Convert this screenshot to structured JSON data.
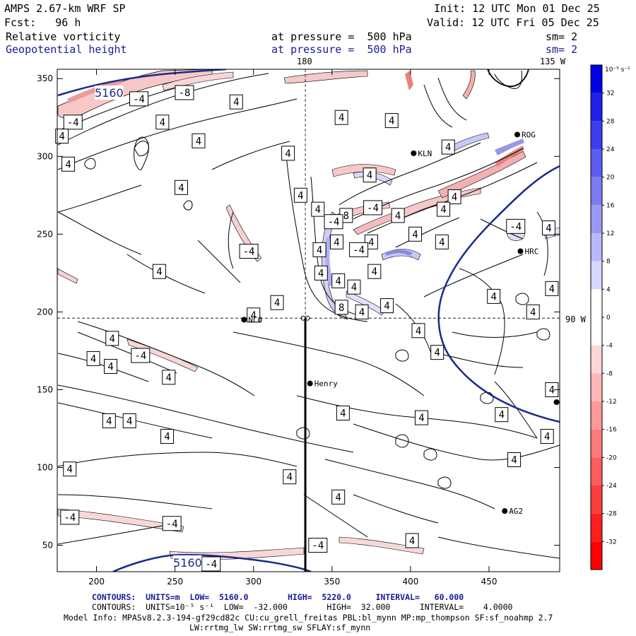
{
  "header": {
    "title": "AMPS 2.67-km WRF SP",
    "init": "Init: 12 UTC Mon 01 Dec 25",
    "fcst": "Fcst:   96 h",
    "valid": "Valid: 12 UTC Fri 05 Dec 25",
    "field1": {
      "name": "Relative vorticity",
      "at": "at pressure =  500 hPa",
      "sm": "sm= 2"
    },
    "field2": {
      "name": "Geopotential height",
      "at": "at pressure =  500 hPa",
      "sm": "sm= 2"
    }
  },
  "map_labels": {
    "lon180": "180",
    "lon135": "135 W",
    "lon90": "90 W"
  },
  "stations": [
    {
      "name": "ROG",
      "x": 468,
      "y": 314
    },
    {
      "name": "KLN",
      "x": 402,
      "y": 302
    },
    {
      "name": "HRC",
      "x": 470,
      "y": 239
    },
    {
      "name": "NCO",
      "x": 294,
      "y": 195
    },
    {
      "name": "Henry",
      "x": 336,
      "y": 154
    },
    {
      "name": "AG2",
      "x": 460,
      "y": 72
    },
    {
      "name": "",
      "x": 493,
      "y": 142
    }
  ],
  "contour_labels": [
    {
      "v": "-8",
      "x": 256,
      "y": 341
    },
    {
      "v": "-4",
      "x": 227,
      "y": 337
    },
    {
      "v": "4",
      "x": 289,
      "y": 335
    },
    {
      "v": "-4",
      "x": 185,
      "y": 322
    },
    {
      "v": "4",
      "x": 178,
      "y": 313
    },
    {
      "v": "4",
      "x": 242,
      "y": 322
    },
    {
      "v": "4",
      "x": 265,
      "y": 310
    },
    {
      "v": "4",
      "x": 356,
      "y": 325
    },
    {
      "v": "4",
      "x": 322,
      "y": 302
    },
    {
      "v": "4",
      "x": 388,
      "y": 323
    },
    {
      "v": "4",
      "x": 182,
      "y": 295
    },
    {
      "v": "4",
      "x": 374,
      "y": 288
    },
    {
      "v": "4",
      "x": 254,
      "y": 280
    },
    {
      "v": "4",
      "x": 428,
      "y": 274
    },
    {
      "v": "4",
      "x": 424,
      "y": 306
    },
    {
      "v": "4",
      "x": 330,
      "y": 275
    },
    {
      "v": "4",
      "x": 341,
      "y": 266
    },
    {
      "v": "-4",
      "x": 376,
      "y": 267
    },
    {
      "v": "8",
      "x": 359,
      "y": 262
    },
    {
      "v": "-4",
      "x": 351,
      "y": 258
    },
    {
      "v": "4",
      "x": 392,
      "y": 262
    },
    {
      "v": "4",
      "x": 421,
      "y": 266
    },
    {
      "v": "-4",
      "x": 467,
      "y": 255
    },
    {
      "v": "4",
      "x": 488,
      "y": 254
    },
    {
      "v": "4",
      "x": 375,
      "y": 245
    },
    {
      "v": "4",
      "x": 403,
      "y": 250
    },
    {
      "v": "4",
      "x": 420,
      "y": 245
    },
    {
      "v": "4",
      "x": 353,
      "y": 245
    },
    {
      "v": "-4",
      "x": 367,
      "y": 240
    },
    {
      "v": "4",
      "x": 342,
      "y": 240
    },
    {
      "v": "-4",
      "x": 297,
      "y": 239
    },
    {
      "v": "4",
      "x": 364,
      "y": 216
    },
    {
      "v": "4",
      "x": 343,
      "y": 225
    },
    {
      "v": "4",
      "x": 377,
      "y": 226
    },
    {
      "v": "4",
      "x": 354,
      "y": 220
    },
    {
      "v": "4",
      "x": 240,
      "y": 226
    },
    {
      "v": "4",
      "x": 490,
      "y": 215
    },
    {
      "v": "4",
      "x": 453,
      "y": 210
    },
    {
      "v": "4",
      "x": 315,
      "y": 206
    },
    {
      "v": "4",
      "x": 369,
      "y": 200
    },
    {
      "v": "8",
      "x": 356,
      "y": 203
    },
    {
      "v": "4",
      "x": 385,
      "y": 204
    },
    {
      "v": "4",
      "x": 478,
      "y": 200
    },
    {
      "v": "4",
      "x": 300,
      "y": 198
    },
    {
      "v": "4",
      "x": 405,
      "y": 188
    },
    {
      "v": "4",
      "x": 210,
      "y": 183
    },
    {
      "v": "-4",
      "x": 228,
      "y": 172
    },
    {
      "v": "4",
      "x": 198,
      "y": 170
    },
    {
      "v": "4",
      "x": 209,
      "y": 165
    },
    {
      "v": "4",
      "x": 417,
      "y": 174
    },
    {
      "v": "4",
      "x": 246,
      "y": 158
    },
    {
      "v": "4",
      "x": 357,
      "y": 135
    },
    {
      "v": "4",
      "x": 407,
      "y": 132
    },
    {
      "v": "4",
      "x": 458,
      "y": 134
    },
    {
      "v": "4",
      "x": 490,
      "y": 150
    },
    {
      "v": "4",
      "x": 208,
      "y": 130
    },
    {
      "v": "4",
      "x": 221,
      "y": 130
    },
    {
      "v": "4",
      "x": 245,
      "y": 120
    },
    {
      "v": "4",
      "x": 487,
      "y": 120
    },
    {
      "v": "4",
      "x": 466,
      "y": 105
    },
    {
      "v": "4",
      "x": 183,
      "y": 99
    },
    {
      "v": "4",
      "x": 323,
      "y": 94
    },
    {
      "v": "4",
      "x": 354,
      "y": 81
    },
    {
      "v": "-4",
      "x": 183,
      "y": 68
    },
    {
      "v": "-4",
      "x": 248,
      "y": 64
    },
    {
      "v": "-4",
      "x": 341,
      "y": 50
    },
    {
      "v": "4",
      "x": 401,
      "y": 53
    },
    {
      "v": "-4",
      "x": 273,
      "y": 38
    }
  ],
  "height_labels": [
    {
      "v": "5160",
      "x": 258,
      "y": 39
    },
    {
      "v": "5160",
      "x": 208,
      "y": 341
    }
  ],
  "chart_data": {
    "type": "contour",
    "xlim": [
      175,
      495
    ],
    "ylim": [
      33,
      356
    ],
    "xticks": [
      200,
      250,
      300,
      350,
      400,
      450
    ],
    "yticks": [
      50,
      100,
      150,
      200,
      250,
      300,
      350
    ],
    "dashed_lines": {
      "lon180_x": 333,
      "lon90_y": 196
    },
    "cross_section": {
      "x": 333,
      "y_top": 196,
      "y_bottom": 33
    },
    "colorbar": {
      "unit_label": "10⁻⁵ s⁻¹",
      "min": -36,
      "max": 36,
      "step": 4,
      "ticks": [
        "32",
        "28",
        "24",
        "20",
        "16",
        "12",
        "8",
        "4",
        "0",
        "-4",
        "-8",
        "-12",
        "-16",
        "-20",
        "-24",
        "-28",
        "-32"
      ],
      "colors": {
        "positive_strong": "#0000e6",
        "positive_weak": "#e6e6ff",
        "negative_weak": "#ffe6e6",
        "negative_strong": "#ff0000"
      }
    },
    "geopotential_contours": {
      "units": "m",
      "low": "5160.0",
      "high": "5220.0",
      "interval": "60.000",
      "values": [
        5160,
        5220
      ]
    },
    "vorticity_contours": {
      "low": "-32.000",
      "high": "32.000",
      "interval": "4.0000"
    }
  },
  "footer": {
    "line1": "CONTOURS:  UNITS=m  LOW=  5160.0        HIGH=  5220.0     INTERVAL=   60.000",
    "line2": "CONTOURS:  UNITS=10⁻⁵ s⁻¹  LOW=  -32.000        HIGH=  32.000      INTERVAL=    4.0000",
    "line3": "Model Info: MPASv8.2.3-194-gf29cd82c CU:cu_grell_freitas PBL:bl_mynn MP:mp_thompson SF:sf_noahmp 2.7",
    "line4": "LW:rrtmg_lw SW:rrtmg_sw SFLAY:sf_mynn"
  },
  "colors": {
    "height_contour": "#1a2a8a",
    "contour": "#000000"
  }
}
